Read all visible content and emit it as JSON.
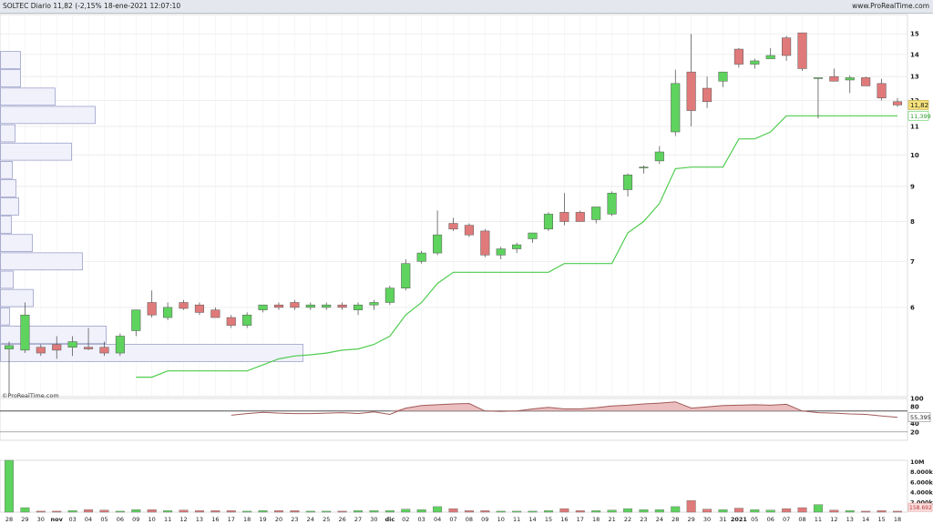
{
  "header": {
    "title": "SOLTEC Diario 11,82 (-2,15% 18-ene-2021 12:07:10",
    "site": "www.ProRealTime.com"
  },
  "credit": "©ProRealTime.com",
  "colors": {
    "up": "#5ed35e",
    "down": "#e07a7a",
    "stop": "#4fcc4f",
    "grid": "#e6e6e6",
    "volbar": "#c8cbf0",
    "osc_fill": "#e8b4b4",
    "osc_line": "#a15a5a"
  },
  "x_tick_labels": [
    "28",
    "29",
    "30",
    "nov",
    "03",
    "04",
    "05",
    "06",
    "09",
    "10",
    "11",
    "12",
    "13",
    "16",
    "17",
    "18",
    "19",
    "20",
    "23",
    "24",
    "25",
    "26",
    "27",
    "30",
    "dic",
    "02",
    "03",
    "04",
    "07",
    "08",
    "09",
    "10",
    "11",
    "14",
    "15",
    "16",
    "17",
    "18",
    "21",
    "22",
    "23",
    "24",
    "28",
    "29",
    "30",
    "31",
    "2021",
    "05",
    "06",
    "07",
    "08",
    "11",
    "12",
    "13",
    "14",
    "15",
    "18"
  ],
  "chart_data": [
    {
      "type": "candlestick",
      "title": "SOLTEC Diario",
      "y_axis": {
        "ticks": [
          6,
          7,
          8,
          9,
          10,
          11,
          12,
          13,
          14,
          15
        ],
        "scale": "log",
        "range": [
          4.45,
          16.0
        ]
      },
      "last_price_label": "11,82",
      "stop_label": "11,399",
      "ohlc": [
        [
          5.22,
          5.35,
          4.5,
          5.28
        ],
        [
          5.2,
          6.1,
          5.15,
          5.85
        ],
        [
          5.25,
          5.3,
          5.1,
          5.15
        ],
        [
          5.3,
          5.45,
          5.05,
          5.2
        ],
        [
          5.25,
          5.45,
          5.1,
          5.35
        ],
        [
          5.25,
          5.6,
          5.2,
          5.22
        ],
        [
          5.25,
          5.35,
          5.1,
          5.15
        ],
        [
          5.15,
          5.5,
          5.1,
          5.45
        ],
        [
          5.55,
          5.95,
          5.45,
          5.95
        ],
        [
          6.1,
          6.35,
          5.8,
          5.85
        ],
        [
          5.8,
          6.1,
          5.75,
          6.0
        ],
        [
          6.1,
          6.15,
          5.95,
          5.98
        ],
        [
          6.05,
          6.1,
          5.85,
          5.9
        ],
        [
          5.95,
          6.0,
          5.8,
          5.8
        ],
        [
          5.8,
          5.85,
          5.6,
          5.65
        ],
        [
          5.65,
          5.9,
          5.6,
          5.85
        ],
        [
          5.95,
          6.05,
          5.9,
          6.05
        ],
        [
          6.05,
          6.1,
          5.95,
          6.0
        ],
        [
          6.1,
          6.15,
          5.95,
          6.0
        ],
        [
          6.0,
          6.1,
          5.95,
          6.05
        ],
        [
          6.0,
          6.1,
          5.95,
          6.05
        ],
        [
          6.05,
          6.1,
          5.95,
          6.0
        ],
        [
          5.95,
          6.1,
          5.85,
          6.05
        ],
        [
          6.05,
          6.15,
          5.95,
          6.1
        ],
        [
          6.1,
          6.45,
          6.05,
          6.4
        ],
        [
          6.4,
          7.05,
          6.35,
          6.95
        ],
        [
          7.0,
          7.25,
          6.95,
          7.2
        ],
        [
          7.2,
          8.3,
          7.15,
          7.65
        ],
        [
          7.95,
          8.1,
          7.75,
          7.8
        ],
        [
          7.9,
          7.95,
          7.6,
          7.65
        ],
        [
          7.75,
          7.8,
          7.1,
          7.15
        ],
        [
          7.15,
          7.35,
          7.05,
          7.3
        ],
        [
          7.3,
          7.45,
          7.2,
          7.4
        ],
        [
          7.55,
          7.7,
          7.45,
          7.7
        ],
        [
          7.8,
          8.25,
          7.75,
          8.2
        ],
        [
          8.25,
          8.8,
          7.9,
          8.0
        ],
        [
          8.25,
          8.3,
          8.0,
          8.0
        ],
        [
          8.05,
          8.4,
          7.95,
          8.4
        ],
        [
          8.2,
          8.85,
          8.15,
          8.8
        ],
        [
          8.9,
          9.4,
          8.7,
          9.35
        ],
        [
          9.6,
          9.65,
          9.4,
          9.6
        ],
        [
          9.8,
          10.3,
          9.7,
          10.1
        ],
        [
          10.8,
          13.3,
          10.65,
          12.7
        ],
        [
          13.2,
          15.0,
          11.0,
          11.6
        ],
        [
          12.5,
          13.0,
          11.7,
          11.95
        ],
        [
          12.8,
          13.2,
          12.55,
          13.2
        ],
        [
          14.25,
          14.3,
          13.4,
          13.55
        ],
        [
          13.55,
          13.8,
          13.35,
          13.7
        ],
        [
          13.8,
          14.3,
          13.8,
          13.95
        ],
        [
          14.8,
          14.9,
          13.7,
          13.95
        ],
        [
          15.05,
          15.05,
          13.25,
          13.35
        ],
        [
          12.95,
          12.95,
          11.3,
          12.95
        ],
        [
          13.0,
          13.35,
          12.8,
          12.8
        ],
        [
          12.85,
          13.05,
          12.3,
          12.95
        ],
        [
          12.95,
          13.0,
          12.6,
          12.6
        ],
        [
          12.7,
          12.9,
          12.0,
          12.1
        ],
        [
          11.95,
          12.1,
          11.75,
          11.82
        ]
      ],
      "trailing_stop": [
        null,
        null,
        null,
        null,
        null,
        null,
        null,
        null,
        4.75,
        4.75,
        4.85,
        4.85,
        4.85,
        4.85,
        4.85,
        4.85,
        4.95,
        5.05,
        5.1,
        5.12,
        5.15,
        5.2,
        5.22,
        5.3,
        5.45,
        5.85,
        6.1,
        6.5,
        6.75,
        6.75,
        6.75,
        6.75,
        6.75,
        6.75,
        6.75,
        6.95,
        6.95,
        6.95,
        6.95,
        7.7,
        8.0,
        8.5,
        9.55,
        9.6,
        9.6,
        9.6,
        10.55,
        10.55,
        10.8,
        11.4,
        11.4,
        11.4,
        11.4,
        11.4,
        11.4,
        11.4,
        11.4
      ],
      "volume_profile_widths": [
        22,
        22,
        60,
        104,
        16,
        78,
        13,
        17,
        20,
        12,
        35,
        90,
        14,
        36,
        10,
        116,
        332
      ]
    },
    {
      "type": "area",
      "name": "oscillator",
      "y_axis": {
        "ticks": [
          100,
          80,
          40,
          20
        ],
        "range": [
          0,
          100
        ]
      },
      "reference_line": 70,
      "last_label": "55,395",
      "values": [
        null,
        null,
        null,
        null,
        null,
        null,
        null,
        null,
        null,
        null,
        null,
        null,
        null,
        null,
        60,
        64,
        67,
        65,
        64,
        64,
        65,
        66,
        64,
        68,
        62,
        77,
        83,
        85,
        87,
        88,
        70,
        69,
        70,
        75,
        79,
        75,
        75,
        78,
        82,
        84,
        87,
        89,
        92,
        77,
        80,
        83,
        84,
        85,
        84,
        86,
        70,
        66,
        65,
        63,
        62,
        58,
        55
      ]
    },
    {
      "type": "bar",
      "name": "volume",
      "y_axis": {
        "ticks": [
          "10M",
          "8.000k",
          "6.000k",
          "4.000k",
          "2.000k"
        ]
      },
      "last_label": "158.692",
      "values": [
        10.3,
        0.9,
        0.2,
        0.2,
        0.3,
        0.5,
        0.4,
        0.2,
        0.5,
        0.5,
        0.3,
        0.4,
        0.3,
        0.3,
        0.3,
        0.2,
        0.3,
        0.3,
        0.3,
        0.2,
        0.2,
        0.2,
        0.3,
        0.3,
        0.3,
        0.6,
        0.5,
        1.1,
        0.7,
        0.3,
        0.3,
        0.2,
        0.2,
        0.2,
        0.3,
        0.7,
        0.3,
        0.3,
        0.4,
        0.7,
        0.5,
        0.5,
        1.1,
        2.3,
        0.6,
        0.5,
        0.8,
        0.5,
        0.4,
        0.7,
        0.9,
        1.5,
        0.4,
        0.3,
        0.2,
        0.3,
        0.2
      ]
    }
  ]
}
